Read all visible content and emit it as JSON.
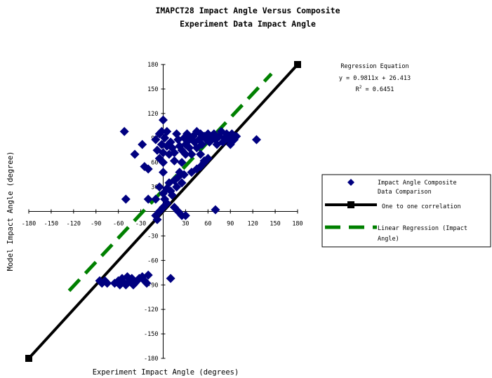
{
  "chart_data": {
    "type": "scatter",
    "title_line1": "IMAPCT28 Impact Angle Versus Composite",
    "title_line2": "Experiment Data Impact Angle",
    "xlabel": "Experiment Impact Angle (degrees)",
    "ylabel": "Model Impact Angle (degree)",
    "xlim": [
      -180,
      180
    ],
    "ylim": [
      -180,
      180
    ],
    "xticks": [
      -180,
      -150,
      -120,
      -90,
      -60,
      -30,
      30,
      60,
      90,
      120,
      150,
      180
    ],
    "yticks": [
      180,
      150,
      120,
      90,
      60,
      30,
      -30,
      -60,
      -90,
      -120,
      -150,
      -180
    ],
    "annotation": {
      "heading": "Regression Equation",
      "equation": "y = 0.9811x + 26.413",
      "r2_prefix": "R",
      "r2_sup": "2",
      "r2_value": " = 0.6451"
    },
    "colors": {
      "scatter": "#000080",
      "one_to_one": "#000000",
      "regression": "#008000"
    },
    "legend": {
      "position": "right",
      "entries": [
        {
          "line1": "Impact Angle Composite",
          "line2": "Data Comparison"
        },
        {
          "line1": "One to one correlation",
          "line2": ""
        },
        {
          "line1": "Linear Regression (Impact",
          "line2": "Angle)"
        }
      ]
    },
    "series": [
      {
        "name": "Impact Angle Composite Data Comparison",
        "points": [
          [
            -52,
            98
          ],
          [
            -38,
            70
          ],
          [
            -28,
            82
          ],
          [
            -25,
            55
          ],
          [
            -20,
            52
          ],
          [
            -10,
            88
          ],
          [
            -5,
            95
          ],
          [
            -8,
            75
          ],
          [
            -5,
            65
          ],
          [
            -2,
            82
          ],
          [
            0,
            72
          ],
          [
            0,
            60
          ],
          [
            2,
            90
          ],
          [
            5,
            98
          ],
          [
            5,
            80
          ],
          [
            8,
            70
          ],
          [
            10,
            85
          ],
          [
            12,
            78
          ],
          [
            15,
            72
          ],
          [
            15,
            62
          ],
          [
            18,
            95
          ],
          [
            20,
            88
          ],
          [
            22,
            80
          ],
          [
            25,
            75
          ],
          [
            25,
            60
          ],
          [
            28,
            90
          ],
          [
            30,
            82
          ],
          [
            30,
            70
          ],
          [
            32,
            95
          ],
          [
            35,
            88
          ],
          [
            35,
            78
          ],
          [
            38,
            70
          ],
          [
            40,
            92
          ],
          [
            42,
            85
          ],
          [
            45,
            98
          ],
          [
            45,
            78
          ],
          [
            48,
            88
          ],
          [
            50,
            95
          ],
          [
            50,
            70
          ],
          [
            52,
            82
          ],
          [
            55,
            92
          ],
          [
            55,
            62
          ],
          [
            58,
            88
          ],
          [
            60,
            95
          ],
          [
            62,
            85
          ],
          [
            65,
            90
          ],
          [
            68,
            95
          ],
          [
            70,
            88
          ],
          [
            72,
            82
          ],
          [
            75,
            92
          ],
          [
            78,
            98
          ],
          [
            80,
            85
          ],
          [
            82,
            90
          ],
          [
            85,
            95
          ],
          [
            88,
            88
          ],
          [
            90,
            82
          ],
          [
            92,
            95
          ],
          [
            95,
            88
          ],
          [
            98,
            92
          ],
          [
            125,
            88
          ],
          [
            50,
            55
          ],
          [
            55,
            60
          ],
          [
            60,
            65
          ],
          [
            45,
            52
          ],
          [
            38,
            48
          ],
          [
            0,
            112
          ],
          [
            -2,
            98
          ],
          [
            0,
            48
          ],
          [
            -5,
            30
          ],
          [
            0,
            22
          ],
          [
            2,
            15
          ],
          [
            5,
            10
          ],
          [
            0,
            5
          ],
          [
            -5,
            0
          ],
          [
            -10,
            -5
          ],
          [
            -20,
            15
          ],
          [
            -10,
            15
          ],
          [
            -50,
            15
          ],
          [
            5,
            28
          ],
          [
            8,
            35
          ],
          [
            10,
            25
          ],
          [
            12,
            20
          ],
          [
            15,
            38
          ],
          [
            18,
            30
          ],
          [
            20,
            42
          ],
          [
            22,
            48
          ],
          [
            25,
            35
          ],
          [
            28,
            45
          ],
          [
            15,
            5
          ],
          [
            20,
            0
          ],
          [
            25,
            -5
          ],
          [
            30,
            -5
          ],
          [
            -8,
            -10
          ],
          [
            70,
            2
          ],
          [
            10,
            -82
          ],
          [
            -85,
            -85
          ],
          [
            -82,
            -88
          ],
          [
            -78,
            -85
          ],
          [
            -75,
            -88
          ],
          [
            -60,
            -85
          ],
          [
            -55,
            -82
          ],
          [
            -52,
            -88
          ],
          [
            -48,
            -80
          ],
          [
            -45,
            -85
          ],
          [
            -42,
            -82
          ],
          [
            -38,
            -88
          ],
          [
            -35,
            -85
          ],
          [
            -32,
            -82
          ],
          [
            -28,
            -80
          ],
          [
            -25,
            -85
          ],
          [
            -22,
            -88
          ],
          [
            -20,
            -78
          ],
          [
            -65,
            -88
          ],
          [
            -58,
            -90
          ],
          [
            -50,
            -90
          ],
          [
            -40,
            -90
          ]
        ]
      },
      {
        "name": "One to one correlation",
        "points": [
          [
            -180,
            -180
          ],
          [
            180,
            180
          ]
        ]
      },
      {
        "name": "Linear Regression (Impact Angle)",
        "points": [
          [
            -126,
            -97.2
          ],
          [
            145,
            168.7
          ]
        ]
      }
    ]
  }
}
